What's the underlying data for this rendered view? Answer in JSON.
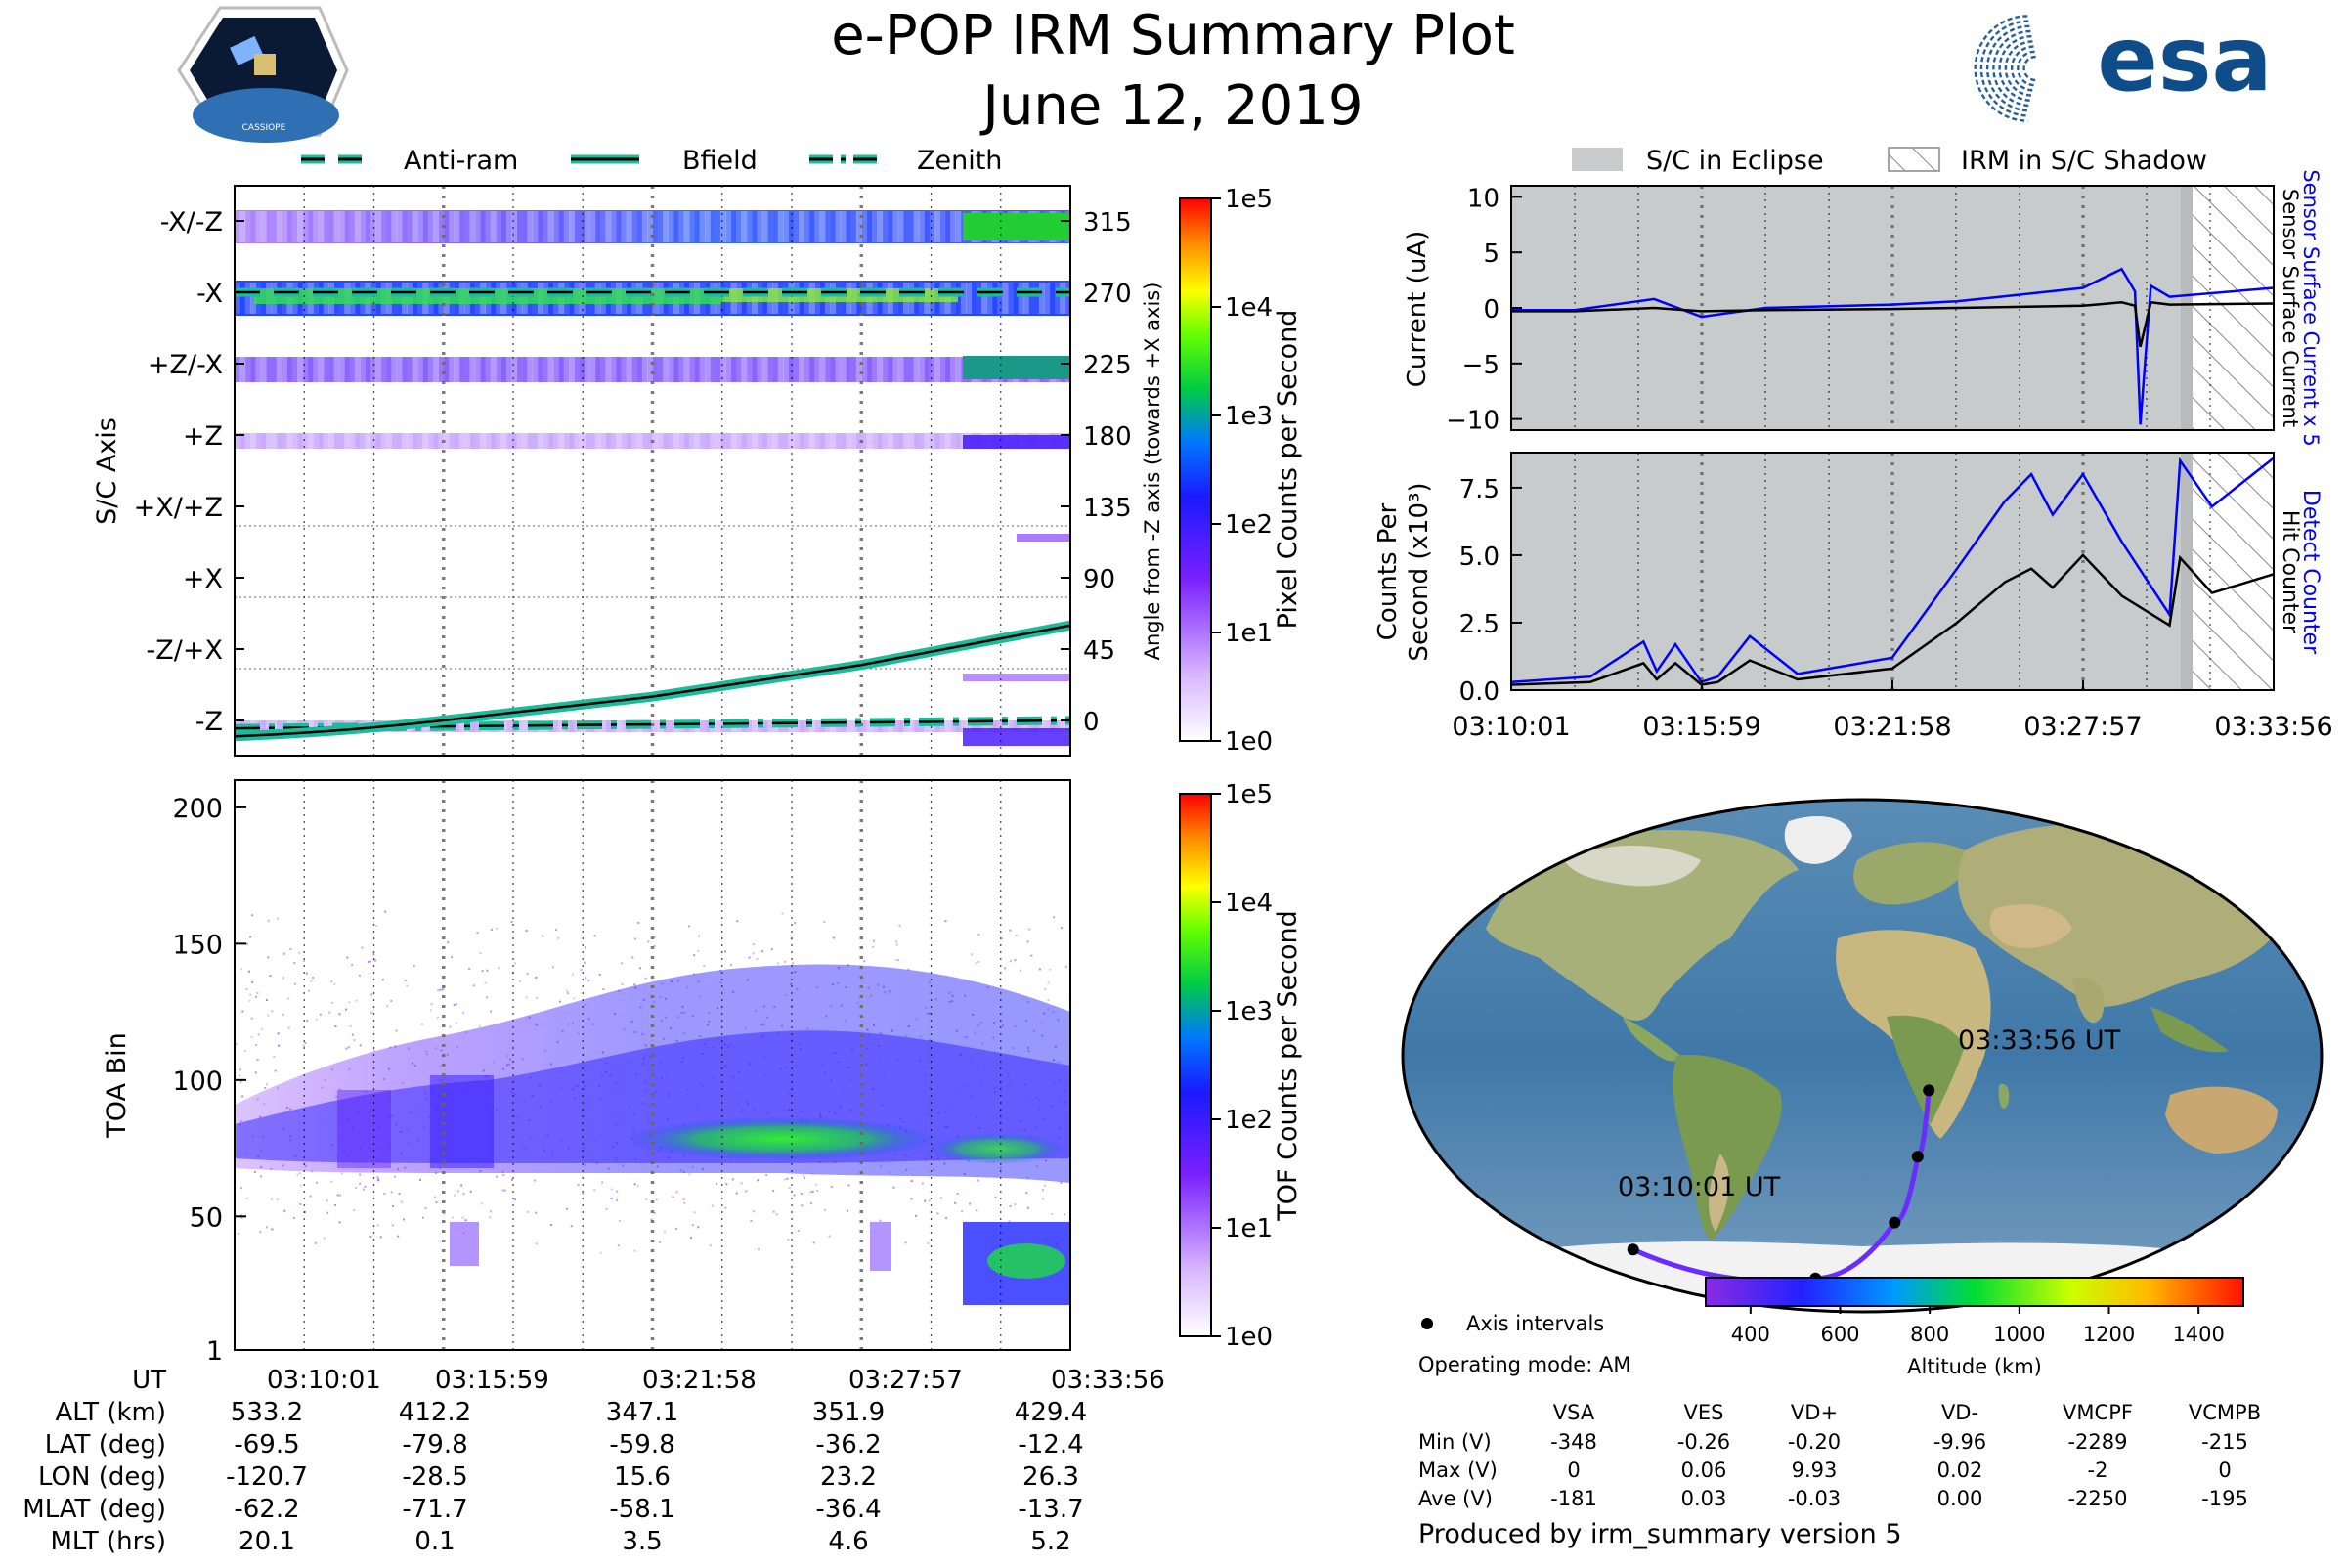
{
  "header": {
    "title": "e-POP IRM Summary Plot",
    "date": "June 12, 2019",
    "badge_text": "CASSIOPE",
    "esa_text": "esa"
  },
  "colors": {
    "cyan": "#1abc9c",
    "blue": "#0000ff",
    "eclipse": "#c8cbcb",
    "track": "#6a2cff"
  },
  "time_ticks": [
    "03:10:01",
    "03:15:59",
    "03:21:58",
    "03:27:57",
    "03:33:56"
  ],
  "panel_sc": {
    "legend": [
      "Anti-ram",
      "Bfield",
      "Zenith"
    ],
    "ylabel": "S/C Axis",
    "y_categories": [
      "-X/-Z",
      "-X",
      "+Z/-X",
      "+Z",
      "+X/+Z",
      "+X",
      "-Z/+X",
      "-Z"
    ],
    "right_ticks": [
      "315",
      "270",
      "225",
      "180",
      "135",
      "90",
      "45",
      "0"
    ],
    "right_label": "Angle from -Z axis (towards +X axis)",
    "cbar_label": "Pixel Counts per Second",
    "cbar_ticks": [
      "1e5",
      "1e4",
      "1e3",
      "1e2",
      "1e1",
      "1e0"
    ]
  },
  "panel_toa": {
    "ylabel": "TOA Bin",
    "yticks": [
      "200",
      "150",
      "100",
      "50",
      "1"
    ],
    "cbar_label": "TOF Counts per Second",
    "cbar_ticks": [
      "1e5",
      "1e4",
      "1e3",
      "1e2",
      "1e1",
      "1e0"
    ]
  },
  "ephemeris": {
    "rows": [
      {
        "label": "UT",
        "values": [
          "03:10:01",
          "03:15:59",
          "03:21:58",
          "03:27:57",
          "03:33:56"
        ]
      },
      {
        "label": "ALT (km)",
        "values": [
          "533.2",
          "412.2",
          "347.1",
          "351.9",
          "429.4"
        ]
      },
      {
        "label": "LAT (deg)",
        "values": [
          "-69.5",
          "-79.8",
          "-59.8",
          "-36.2",
          "-12.4"
        ]
      },
      {
        "label": "LON (deg)",
        "values": [
          "-120.7",
          "-28.5",
          "15.6",
          "23.2",
          "26.3"
        ]
      },
      {
        "label": "MLAT (deg)",
        "values": [
          "-62.2",
          "-71.7",
          "-58.1",
          "-36.4",
          "-13.7"
        ]
      },
      {
        "label": "MLT (hrs)",
        "values": [
          "20.1",
          "0.1",
          "3.5",
          "4.6",
          "5.2"
        ]
      }
    ]
  },
  "panel_current": {
    "legend": [
      "S/C in Eclipse",
      "IRM in S/C Shadow"
    ],
    "ylabel": "Current (uA)",
    "yticks": [
      "10",
      "5",
      "0",
      "−5",
      "−10"
    ],
    "right_label_blue": "Sensor Surface Current x 5",
    "right_label_black": "Sensor Surface Current"
  },
  "panel_counts": {
    "ylabel1": "Counts Per",
    "ylabel2": "Second (x10³)",
    "yticks": [
      "7.5",
      "5.0",
      "2.5",
      "0.0"
    ],
    "right_label_blue": "Detect Counter",
    "right_label_black": "Hit Counter"
  },
  "map": {
    "start_label": "03:10:01 UT",
    "end_label": "03:33:56 UT",
    "legend_label": "Axis intervals",
    "operating_mode": "Operating mode: AM",
    "cbar_label": "Altitude (km)",
    "cbar_ticks": [
      "400",
      "600",
      "800",
      "1000",
      "1200",
      "1400"
    ]
  },
  "voltages": {
    "headers": [
      "VSA",
      "VES",
      "VD+",
      "VD-",
      "VMCPF",
      "VCMPB"
    ],
    "rows": [
      {
        "label": "Min (V)",
        "values": [
          "-348",
          "-0.26",
          "-0.20",
          "-9.96",
          "-2289",
          "-215"
        ]
      },
      {
        "label": "Max (V)",
        "values": [
          "0",
          "0.06",
          "9.93",
          "0.02",
          "-2",
          "0"
        ]
      },
      {
        "label": "Ave (V)",
        "values": [
          "-181",
          "0.03",
          "-0.03",
          "0.00",
          "-2250",
          "-195"
        ]
      }
    ]
  },
  "footer": "Produced by irm_summary version 5",
  "chart_data": [
    {
      "type": "heatmap",
      "title": "",
      "ylabel": "S/C Axis",
      "y2label": "Angle from -Z axis (towards +X axis)",
      "y2lim": [
        0,
        315
      ],
      "series": [
        {
          "name": "Bfield",
          "x": [
            "03:10:01",
            "03:15:59",
            "03:21:58",
            "03:27:57",
            "03:33:56"
          ],
          "values": [
            -10,
            0,
            15,
            35,
            60
          ]
        },
        {
          "name": "Zenith",
          "x": [
            "03:10:01",
            "03:33:56"
          ],
          "values": [
            -5,
            0
          ]
        },
        {
          "name": "Anti-ram",
          "x": [
            "03:10:01",
            "03:33:56"
          ],
          "values": [
            270,
            270
          ]
        }
      ],
      "colorbar": {
        "label": "Pixel Counts per Second",
        "range": [
          "1e0",
          "1e5"
        ],
        "scale": "log"
      }
    },
    {
      "type": "heatmap",
      "ylabel": "TOA Bin",
      "ylim": [
        1,
        210
      ],
      "colorbar": {
        "label": "TOF Counts per Second",
        "range": [
          "1e0",
          "1e5"
        ],
        "scale": "log"
      }
    },
    {
      "type": "line",
      "ylabel": "Current (uA)",
      "ylim": [
        -11,
        11
      ],
      "x": [
        "03:10:01",
        "03:12:00",
        "03:14:30",
        "03:15:59",
        "03:18:00",
        "03:21:58",
        "03:24:00",
        "03:26:00",
        "03:27:57",
        "03:29:10",
        "03:29:35",
        "03:29:45",
        "03:30:05",
        "03:30:40",
        "03:33:56"
      ],
      "series": [
        {
          "name": "Sensor Surface Current x 5",
          "values": [
            -0.2,
            -0.2,
            0.8,
            -0.8,
            0.0,
            0.3,
            0.6,
            1.2,
            1.8,
            3.5,
            1.5,
            -10.5,
            2.0,
            1.0,
            1.8
          ]
        },
        {
          "name": "Sensor Surface Current",
          "values": [
            -0.3,
            -0.3,
            0.0,
            -0.3,
            -0.2,
            -0.1,
            0.0,
            0.1,
            0.2,
            0.5,
            0.2,
            -3.5,
            0.5,
            0.3,
            0.4
          ]
        }
      ],
      "shaded": {
        "eclipse": [
          "03:10:01",
          "03:30:40"
        ],
        "shadow": [
          "03:30:40",
          "03:33:56"
        ]
      }
    },
    {
      "type": "line",
      "ylabel": "Counts Per Second (x10³)",
      "ylim": [
        0,
        8.8
      ],
      "x": [
        "03:10:01",
        "03:12:30",
        "03:14:10",
        "03:14:35",
        "03:15:10",
        "03:15:59",
        "03:16:30",
        "03:17:30",
        "03:19:00",
        "03:21:58",
        "03:24:00",
        "03:25:30",
        "03:26:20",
        "03:27:00",
        "03:27:57",
        "03:29:10",
        "03:30:40",
        "03:31:00",
        "03:32:00",
        "03:33:56"
      ],
      "series": [
        {
          "name": "Detect Counter",
          "values": [
            0.3,
            0.5,
            1.8,
            0.7,
            1.7,
            0.3,
            0.5,
            2.0,
            0.6,
            1.2,
            4.5,
            7.0,
            8.0,
            6.5,
            8.0,
            5.5,
            2.8,
            8.5,
            6.8,
            8.6
          ]
        },
        {
          "name": "Hit Counter",
          "values": [
            0.2,
            0.3,
            1.0,
            0.4,
            1.0,
            0.2,
            0.3,
            1.1,
            0.4,
            0.8,
            2.5,
            4.0,
            4.5,
            3.8,
            5.0,
            3.5,
            2.4,
            4.9,
            3.6,
            4.3
          ]
        }
      ]
    },
    {
      "type": "scatter",
      "title": "",
      "colorbar": {
        "label": "Altitude (km)",
        "range": [
          300,
          1500
        ]
      },
      "track_lon": [
        -120.7,
        -28.5,
        15.6,
        23.2,
        26.3
      ],
      "track_lat": [
        -69.5,
        -79.8,
        -59.8,
        -36.2,
        -12.4
      ],
      "track_alt": [
        533.2,
        412.2,
        347.1,
        351.9,
        429.4
      ]
    }
  ]
}
